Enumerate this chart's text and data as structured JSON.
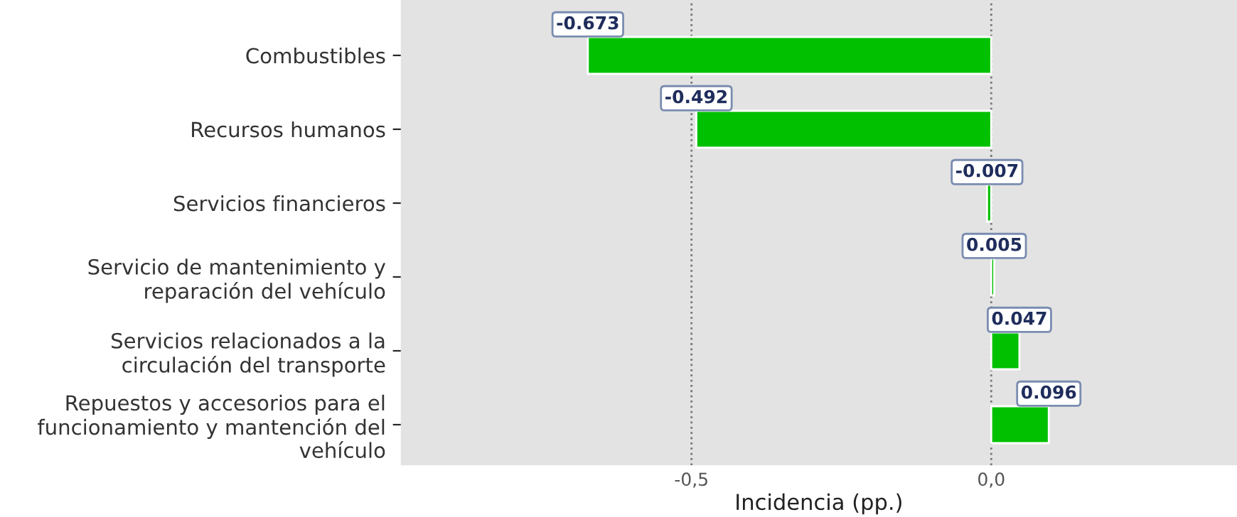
{
  "chart_data": {
    "type": "bar",
    "orientation": "horizontal",
    "categories": [
      "Combustibles",
      "Recursos humanos",
      "Servicios financieros",
      "Servicio de mantenimiento y\nreparación del vehículo",
      "Servicios relacionados a la\ncirculación del transporte",
      "Repuestos y accesorios para el\nfuncionamiento y mantención del\nvehículo"
    ],
    "values": [
      -0.673,
      -0.492,
      -0.007,
      0.005,
      0.047,
      0.096
    ],
    "value_labels": [
      "-0.673",
      "-0.492",
      "-0.007",
      "0.005",
      "0.047",
      "0.096"
    ],
    "color": "#00c000",
    "xlabel": "Incidencia (pp.)",
    "xlim": [
      -0.985,
      0.41
    ],
    "xticks": [
      {
        "value": -0.5,
        "label": "-0,5"
      },
      {
        "value": 0.0,
        "label": "0,0"
      }
    ],
    "grid": "x"
  }
}
